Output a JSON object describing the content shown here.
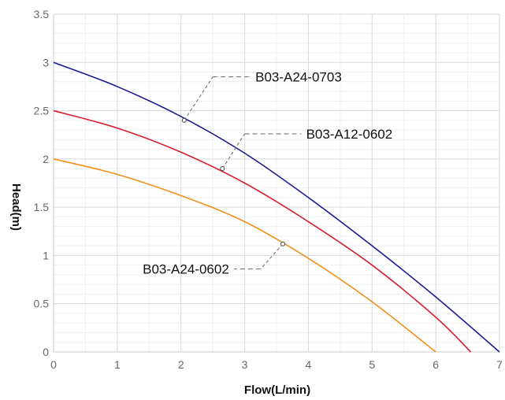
{
  "chart_data": {
    "type": "line",
    "title": "",
    "xlabel": "Flow(L/min)",
    "ylabel": "Head(m)",
    "xlim": [
      0,
      7
    ],
    "ylim": [
      0,
      3.5
    ],
    "x_ticks": [
      "0",
      "1",
      "2",
      "3",
      "4",
      "5",
      "6",
      "7"
    ],
    "y_ticks": [
      "0",
      "0.5",
      "1",
      "1.5",
      "2",
      "2.5",
      "3",
      "3.5"
    ],
    "grid": true,
    "series": [
      {
        "name": "B03-A24-0703",
        "color": "#1a1a96",
        "x": [
          0,
          1,
          2,
          3,
          4,
          5,
          6,
          7
        ],
        "y": [
          3.0,
          2.75,
          2.44,
          2.06,
          1.6,
          1.1,
          0.57,
          0.0
        ],
        "callout_point": [
          2.05,
          2.4
        ]
      },
      {
        "name": "B03-A12-0602",
        "color": "#d81e2e",
        "x": [
          0,
          1,
          2,
          3,
          4,
          5,
          6,
          6.55
        ],
        "y": [
          2.5,
          2.32,
          2.07,
          1.75,
          1.35,
          0.9,
          0.36,
          0.0
        ],
        "callout_point": [
          2.65,
          1.9
        ]
      },
      {
        "name": "B03-A24-0602",
        "color": "#f0901a",
        "x": [
          0,
          1,
          2,
          3,
          4,
          5,
          6
        ],
        "y": [
          2.0,
          1.84,
          1.62,
          1.35,
          0.97,
          0.52,
          0.0
        ],
        "callout_point": [
          3.6,
          1.12
        ]
      }
    ]
  }
}
